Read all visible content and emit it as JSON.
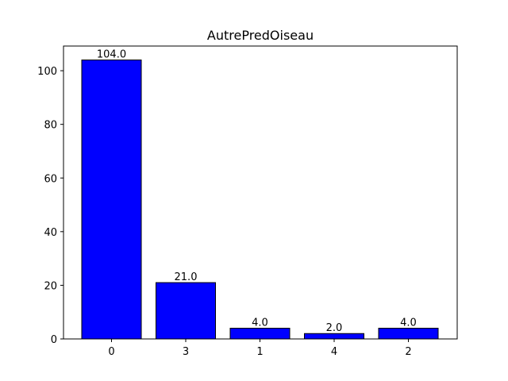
{
  "chart_data": {
    "type": "bar",
    "title": "AutrePredOiseau",
    "xlabel": "",
    "ylabel": "",
    "categories": [
      "0",
      "3",
      "1",
      "4",
      "2"
    ],
    "values": [
      104.0,
      21.0,
      4.0,
      2.0,
      4.0
    ],
    "data_labels": [
      "104.0",
      "21.0",
      "4.0",
      "2.0",
      "4.0"
    ],
    "ylim": [
      0,
      109.2
    ],
    "yticks": [
      0,
      20,
      40,
      60,
      80,
      100
    ],
    "grid": false,
    "bar_color": "#0000ff",
    "edge_color": "#000000"
  }
}
